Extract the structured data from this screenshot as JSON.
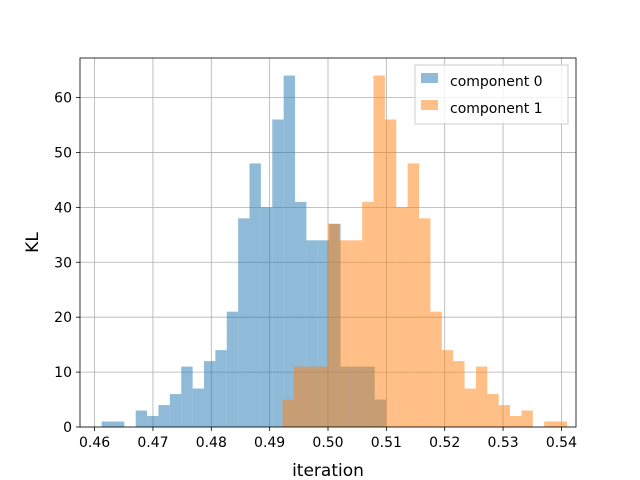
{
  "chart_data": {
    "type": "histogram",
    "title": "",
    "xlabel": "iteration",
    "ylabel": "KL",
    "xlim": [
      0.4575,
      0.5425
    ],
    "ylim": [
      0,
      67.2
    ],
    "grid": true,
    "legend_position": "top-right",
    "x_ticks": [
      "0.46",
      "0.47",
      "0.48",
      "0.49",
      "0.50",
      "0.51",
      "0.52",
      "0.53",
      "0.54"
    ],
    "y_ticks": [
      "0",
      "10",
      "20",
      "30",
      "40",
      "50",
      "60"
    ],
    "series": [
      {
        "name": "component 0",
        "color": "#1f77b4",
        "alpha": 0.5,
        "bin_start": 0.4612,
        "bin_width": 0.00195,
        "counts": [
          1,
          1,
          0,
          3,
          2,
          4,
          6,
          11,
          7,
          12,
          14,
          21,
          38,
          48,
          40,
          56,
          64,
          41,
          34,
          34,
          37,
          11,
          11,
          11,
          5
        ]
      },
      {
        "name": "component 1",
        "color": "#ff7f0e",
        "alpha": 0.5,
        "bin_start": 0.4922,
        "bin_width": 0.00195,
        "counts": [
          5,
          11,
          11,
          11,
          37,
          34,
          34,
          41,
          64,
          56,
          40,
          48,
          38,
          21,
          14,
          12,
          7,
          11,
          6,
          4,
          2,
          3,
          0,
          1,
          1
        ]
      }
    ]
  }
}
